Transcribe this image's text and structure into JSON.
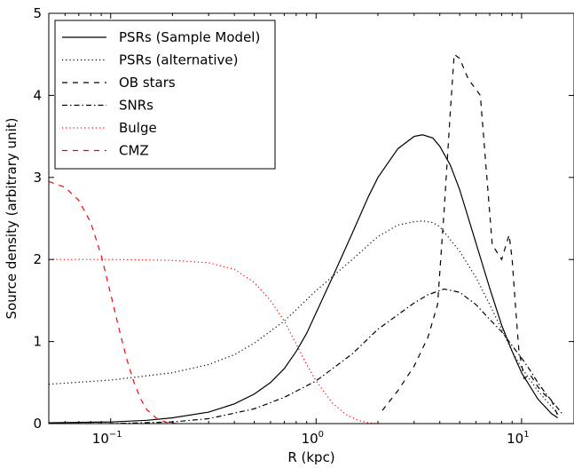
{
  "chart_data": {
    "type": "line",
    "title": "",
    "xlabel": "R (kpc)",
    "ylabel": "Source density (arbitrary unit)",
    "xscale": "log",
    "xlim": [
      0.05,
      18
    ],
    "ylim": [
      0,
      5
    ],
    "x_ticks": [
      {
        "value": 0.1,
        "base": "10",
        "exp": "−1"
      },
      {
        "value": 1,
        "base": "10",
        "exp": "0"
      },
      {
        "value": 10,
        "base": "10",
        "exp": "1"
      }
    ],
    "y_ticks": [
      0,
      1,
      2,
      3,
      4,
      5
    ],
    "legend_position": "top-left",
    "series": [
      {
        "name": "PSRs (Sample Model)",
        "color": "#000000",
        "style": "solid",
        "points": [
          [
            0.05,
            0.01
          ],
          [
            0.07,
            0.015
          ],
          [
            0.1,
            0.02
          ],
          [
            0.15,
            0.04
          ],
          [
            0.2,
            0.07
          ],
          [
            0.3,
            0.14
          ],
          [
            0.4,
            0.24
          ],
          [
            0.5,
            0.36
          ],
          [
            0.6,
            0.5
          ],
          [
            0.7,
            0.67
          ],
          [
            0.8,
            0.88
          ],
          [
            0.9,
            1.1
          ],
          [
            1.0,
            1.35
          ],
          [
            1.2,
            1.78
          ],
          [
            1.5,
            2.32
          ],
          [
            1.8,
            2.77
          ],
          [
            2.0,
            3.0
          ],
          [
            2.5,
            3.35
          ],
          [
            3.0,
            3.5
          ],
          [
            3.3,
            3.52
          ],
          [
            3.7,
            3.48
          ],
          [
            4.0,
            3.38
          ],
          [
            4.5,
            3.15
          ],
          [
            5.0,
            2.85
          ],
          [
            6.0,
            2.2
          ],
          [
            7.0,
            1.65
          ],
          [
            8.0,
            1.2
          ],
          [
            9.0,
            0.88
          ],
          [
            10.0,
            0.62
          ],
          [
            12.0,
            0.3
          ],
          [
            14.0,
            0.12
          ],
          [
            15.0,
            0.07
          ]
        ]
      },
      {
        "name": "PSRs (alternative)",
        "color": "#000000",
        "style": "dotted",
        "points": [
          [
            0.05,
            0.48
          ],
          [
            0.1,
            0.53
          ],
          [
            0.2,
            0.62
          ],
          [
            0.3,
            0.72
          ],
          [
            0.4,
            0.84
          ],
          [
            0.5,
            0.98
          ],
          [
            0.7,
            1.25
          ],
          [
            1.0,
            1.62
          ],
          [
            1.5,
            2.0
          ],
          [
            2.0,
            2.28
          ],
          [
            2.5,
            2.42
          ],
          [
            3.0,
            2.46
          ],
          [
            3.3,
            2.47
          ],
          [
            3.7,
            2.45
          ],
          [
            4.0,
            2.4
          ],
          [
            5.0,
            2.1
          ],
          [
            6.0,
            1.78
          ],
          [
            7.0,
            1.45
          ],
          [
            8.0,
            1.15
          ],
          [
            9.0,
            0.88
          ],
          [
            10.0,
            0.68
          ],
          [
            12.0,
            0.4
          ],
          [
            15.0,
            0.12
          ]
        ]
      },
      {
        "name": "OB stars",
        "color": "#000000",
        "style": "dashed",
        "points": [
          [
            2.1,
            0.16
          ],
          [
            2.5,
            0.4
          ],
          [
            3.0,
            0.7
          ],
          [
            3.5,
            1.05
          ],
          [
            3.9,
            1.45
          ],
          [
            4.2,
            2.6
          ],
          [
            4.5,
            3.8
          ],
          [
            4.7,
            4.5
          ],
          [
            5.0,
            4.45
          ],
          [
            5.5,
            4.2
          ],
          [
            6.3,
            4.0
          ],
          [
            7.2,
            2.18
          ],
          [
            8.0,
            2.0
          ],
          [
            8.7,
            2.3
          ],
          [
            9.0,
            2.0
          ],
          [
            9.3,
            1.5
          ],
          [
            9.7,
            0.9
          ],
          [
            10.3,
            0.55
          ],
          [
            11.0,
            0.6
          ],
          [
            12.0,
            0.45
          ],
          [
            13.0,
            0.35
          ],
          [
            14.0,
            0.28
          ],
          [
            15.0,
            0.1
          ]
        ]
      },
      {
        "name": "SNRs",
        "color": "#000000",
        "style": "dashdot",
        "points": [
          [
            0.05,
            0.0
          ],
          [
            0.1,
            0.0
          ],
          [
            0.2,
            0.02
          ],
          [
            0.3,
            0.06
          ],
          [
            0.5,
            0.18
          ],
          [
            0.7,
            0.32
          ],
          [
            1.0,
            0.52
          ],
          [
            1.5,
            0.85
          ],
          [
            2.0,
            1.15
          ],
          [
            3.0,
            1.47
          ],
          [
            3.5,
            1.57
          ],
          [
            4.2,
            1.64
          ],
          [
            5.0,
            1.6
          ],
          [
            6.0,
            1.45
          ],
          [
            7.0,
            1.27
          ],
          [
            8.0,
            1.12
          ],
          [
            9.0,
            0.95
          ],
          [
            10.0,
            0.8
          ],
          [
            11.0,
            0.65
          ],
          [
            12.0,
            0.5
          ],
          [
            13.0,
            0.38
          ],
          [
            14.0,
            0.28
          ],
          [
            16.0,
            0.1
          ]
        ]
      },
      {
        "name": "Bulge",
        "color": "#ff0000",
        "style": "dotted",
        "points": [
          [
            0.05,
            2.0
          ],
          [
            0.1,
            2.0
          ],
          [
            0.2,
            1.99
          ],
          [
            0.3,
            1.96
          ],
          [
            0.4,
            1.88
          ],
          [
            0.5,
            1.72
          ],
          [
            0.6,
            1.5
          ],
          [
            0.7,
            1.25
          ],
          [
            0.8,
            0.97
          ],
          [
            0.9,
            0.72
          ],
          [
            1.0,
            0.52
          ],
          [
            1.2,
            0.25
          ],
          [
            1.4,
            0.11
          ],
          [
            1.6,
            0.04
          ],
          [
            1.8,
            0.01
          ],
          [
            2.0,
            0.0
          ]
        ]
      },
      {
        "name": "CMZ",
        "color": "#ff0000",
        "style": "dashed",
        "points": [
          [
            0.05,
            2.95
          ],
          [
            0.06,
            2.88
          ],
          [
            0.07,
            2.72
          ],
          [
            0.08,
            2.45
          ],
          [
            0.09,
            2.05
          ],
          [
            0.1,
            1.58
          ],
          [
            0.11,
            1.15
          ],
          [
            0.12,
            0.78
          ],
          [
            0.13,
            0.5
          ],
          [
            0.14,
            0.3
          ],
          [
            0.15,
            0.17
          ],
          [
            0.17,
            0.05
          ],
          [
            0.19,
            0.01
          ],
          [
            0.21,
            0.0
          ]
        ]
      }
    ]
  }
}
